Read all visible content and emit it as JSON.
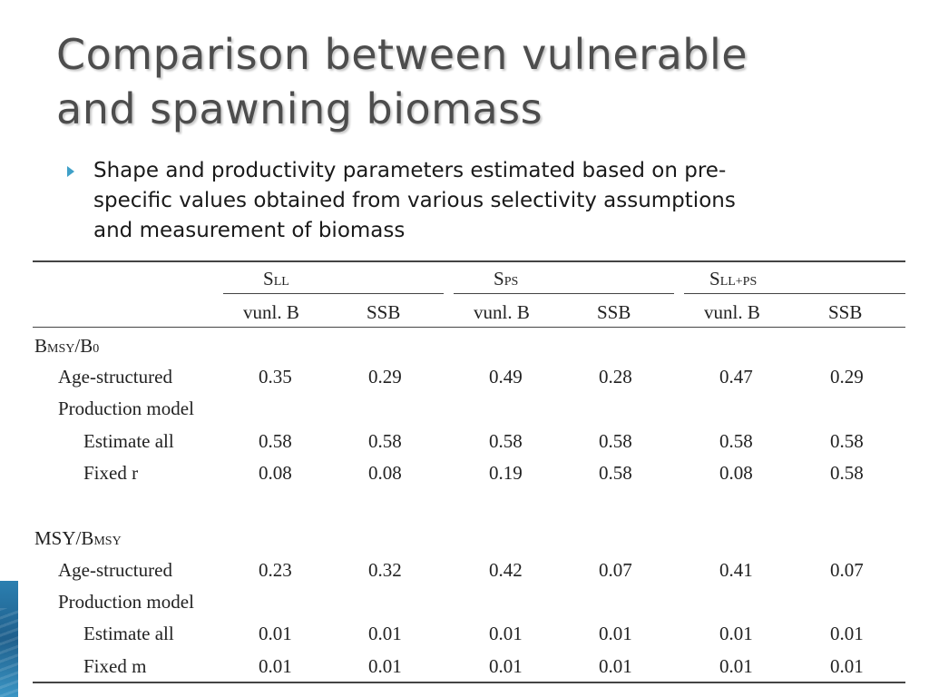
{
  "slide": {
    "title_lines": [
      "Comparison between vulnerable",
      "and spawning biomass"
    ],
    "bullet_lines": [
      "Shape and productivity parameters estimated based on pre-",
      "specific values obtained from various selectivity assumptions",
      "and measurement of biomass"
    ],
    "colors": {
      "title": "#4d4d4d",
      "bullet_arrow": "#3fa0c8",
      "accent": "#2b7fb0"
    }
  },
  "table": {
    "groups": [
      {
        "main": "S",
        "sub": "LL"
      },
      {
        "main": "S",
        "sub": "PS"
      },
      {
        "main": "S",
        "sub": "LL+PS"
      }
    ],
    "subheaders": [
      "vunl. B",
      "SSB",
      "vunl. B",
      "SSB",
      "vunl. B",
      "SSB"
    ],
    "section1": {
      "main1": "B",
      "sub1": "MSY",
      "main2": "/B",
      "sub2": "0"
    },
    "section2": {
      "main1": "MSY/B",
      "sub1": "MSY"
    },
    "rows": [
      {
        "label": "Age-structured",
        "values": [
          "0.35",
          "0.29",
          "0.49",
          "0.28",
          "0.47",
          "0.29"
        ]
      },
      {
        "label": "Production model",
        "values": []
      },
      {
        "label": "Estimate all",
        "values": [
          "0.58",
          "0.58",
          "0.58",
          "0.58",
          "0.58",
          "0.58"
        ]
      },
      {
        "label": "Fixed r",
        "values": [
          "0.08",
          "0.08",
          "0.19",
          "0.58",
          "0.08",
          "0.58"
        ]
      },
      {
        "label": "Age-structured",
        "values": [
          "0.23",
          "0.32",
          "0.42",
          "0.07",
          "0.41",
          "0.07"
        ]
      },
      {
        "label": "Production model",
        "values": []
      },
      {
        "label": "Estimate all",
        "values": [
          "0.01",
          "0.01",
          "0.01",
          "0.01",
          "0.01",
          "0.01"
        ]
      },
      {
        "label": "Fixed m",
        "values": [
          "0.01",
          "0.01",
          "0.01",
          "0.01",
          "0.01",
          "0.01"
        ]
      }
    ]
  }
}
